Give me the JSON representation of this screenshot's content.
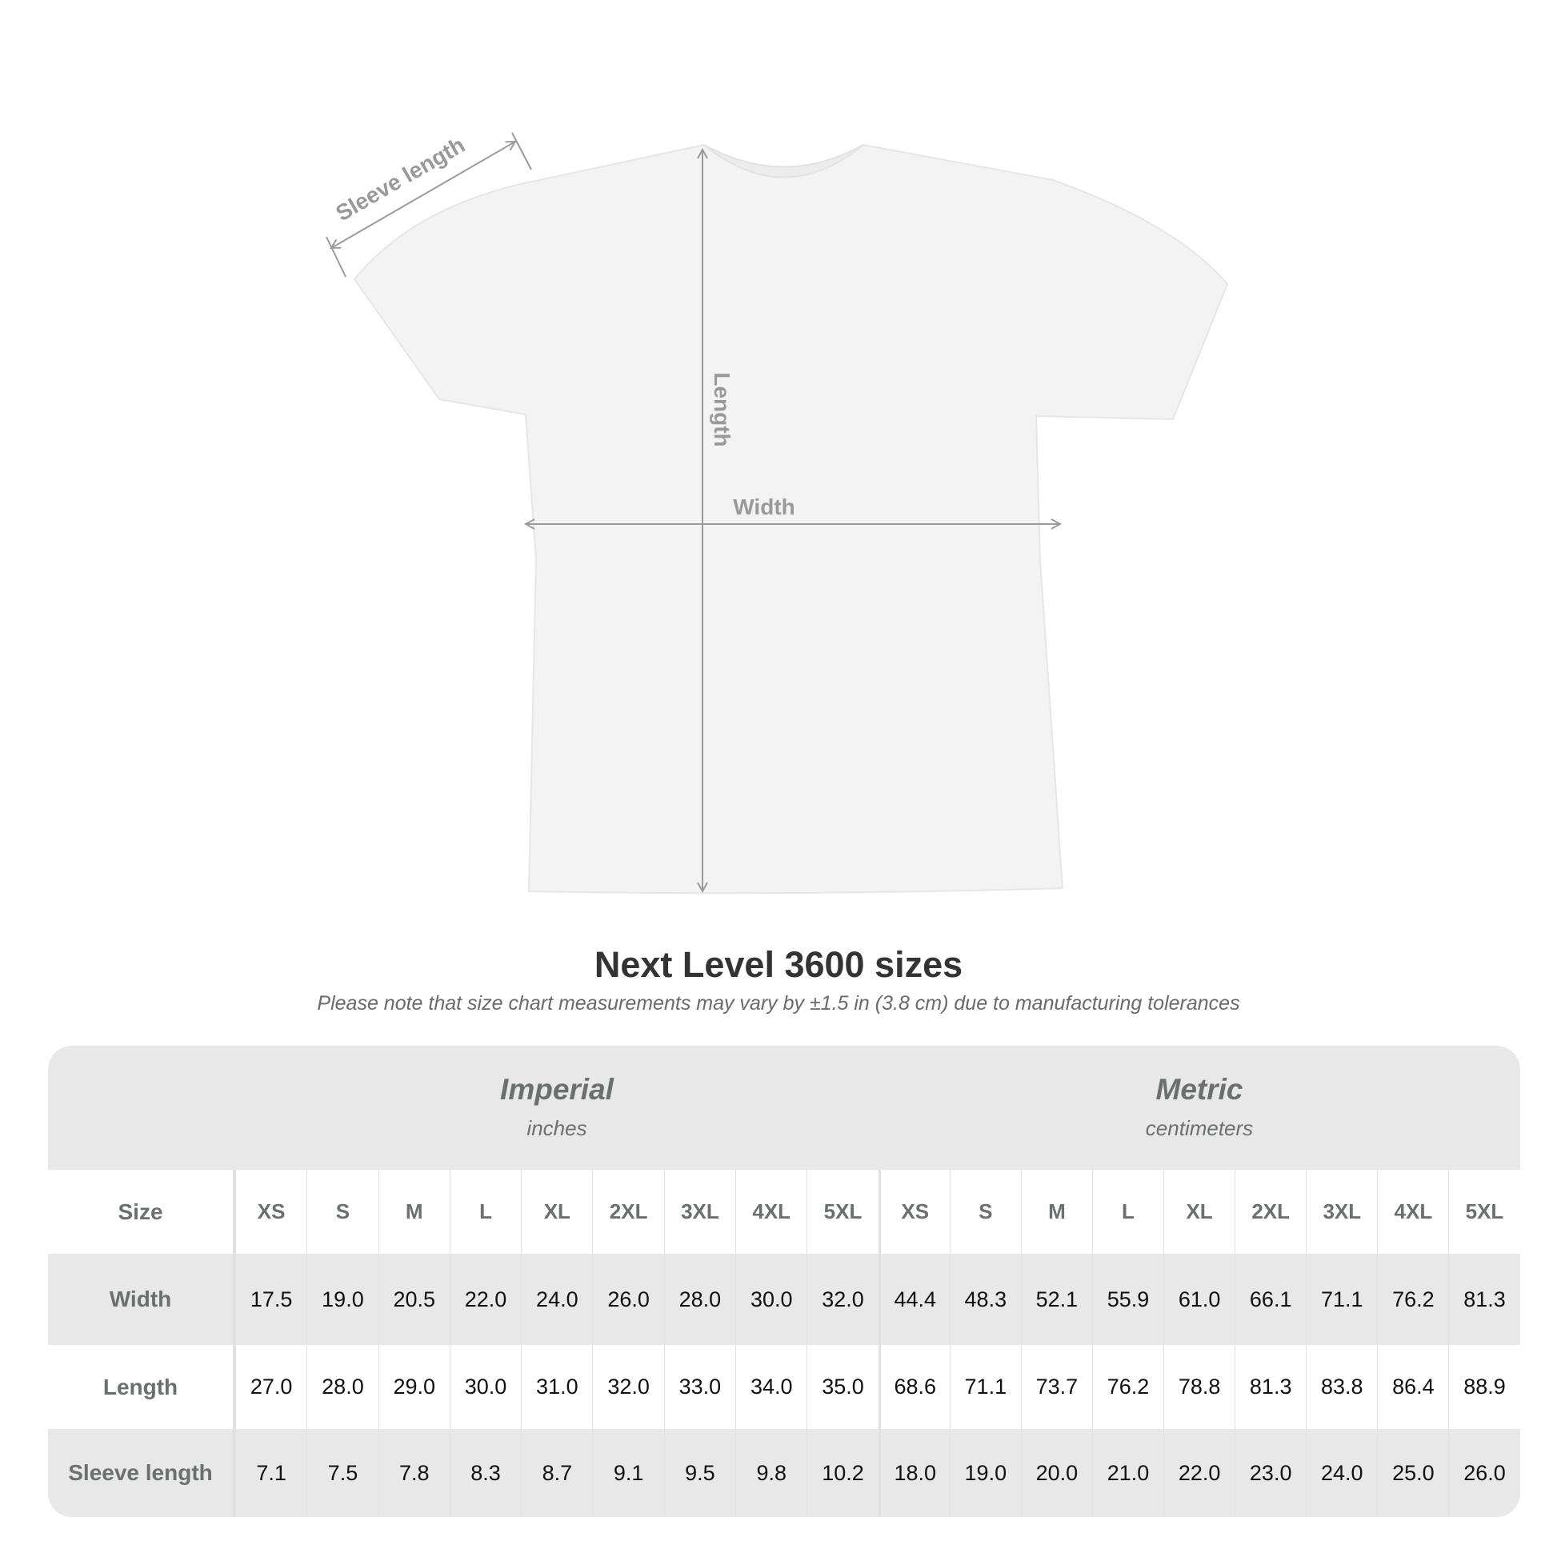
{
  "diagram": {
    "sleeve_label": "Sleeve length",
    "length_label": "Length",
    "width_label": "Width",
    "shirt_color": "#f3f3f3",
    "arrow_color": "#9a9a9a"
  },
  "title": "Next Level 3600 sizes",
  "subtitle": "Please note that size chart measurements may vary by ±1.5 in (3.8 cm) due to manufacturing tolerances",
  "table": {
    "imperial": {
      "label": "Imperial",
      "unit": "inches"
    },
    "metric": {
      "label": "Metric",
      "unit": "centimeters"
    },
    "size_label": "Size",
    "sizes": [
      "XS",
      "S",
      "M",
      "L",
      "XL",
      "2XL",
      "3XL",
      "4XL",
      "5XL"
    ],
    "rows": [
      {
        "label": "Width",
        "imperial": [
          "17.5",
          "19.0",
          "20.5",
          "22.0",
          "24.0",
          "26.0",
          "28.0",
          "30.0",
          "32.0"
        ],
        "metric": [
          "44.4",
          "48.3",
          "52.1",
          "55.9",
          "61.0",
          "66.1",
          "71.1",
          "76.2",
          "81.3"
        ]
      },
      {
        "label": "Length",
        "imperial": [
          "27.0",
          "28.0",
          "29.0",
          "30.0",
          "31.0",
          "32.0",
          "33.0",
          "34.0",
          "35.0"
        ],
        "metric": [
          "68.6",
          "71.1",
          "73.7",
          "76.2",
          "78.8",
          "81.3",
          "83.8",
          "86.4",
          "88.9"
        ]
      },
      {
        "label": "Sleeve length",
        "imperial": [
          "7.1",
          "7.5",
          "7.8",
          "8.3",
          "8.7",
          "9.1",
          "9.5",
          "9.8",
          "10.2"
        ],
        "metric": [
          "18.0",
          "19.0",
          "20.0",
          "21.0",
          "22.0",
          "23.0",
          "24.0",
          "25.0",
          "26.0"
        ]
      }
    ]
  }
}
